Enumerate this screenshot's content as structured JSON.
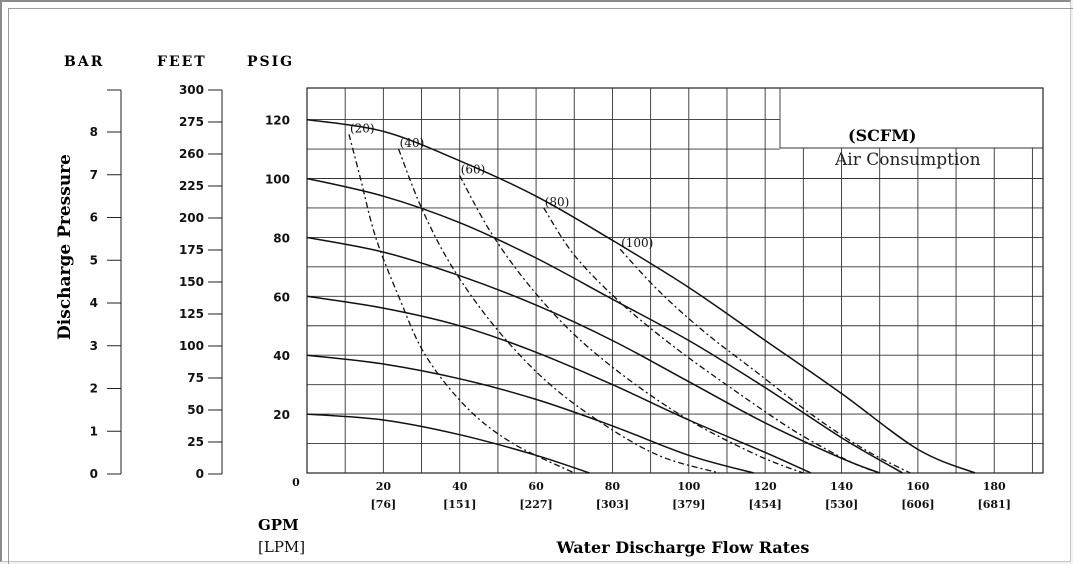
{
  "chart_data": {
    "type": "line",
    "xlabel": "Water Discharge Flow Rates",
    "x_unit_primary": "GPM",
    "x_unit_secondary": "[LPM]",
    "ylabel": "Discharge Pressure",
    "legend_title": "(SCFM)",
    "legend_subtitle": "Air Consumption",
    "xlim": [
      0,
      190
    ],
    "ylim": [
      0,
      130
    ],
    "x_ticks": [
      {
        "gpm": "0",
        "lpm": ""
      },
      {
        "gpm": "20",
        "lpm": "[76]"
      },
      {
        "gpm": "40",
        "lpm": "[151]"
      },
      {
        "gpm": "60",
        "lpm": "[227]"
      },
      {
        "gpm": "80",
        "lpm": "[303]"
      },
      {
        "gpm": "100",
        "lpm": "[379]"
      },
      {
        "gpm": "120",
        "lpm": "[454]"
      },
      {
        "gpm": "140",
        "lpm": "[530]"
      },
      {
        "gpm": "160",
        "lpm": "[606]"
      },
      {
        "gpm": "180",
        "lpm": "[681]"
      }
    ],
    "axes": {
      "bar": {
        "label": "BAR",
        "ticks": [
          "8",
          "7",
          "6",
          "5",
          "4",
          "3",
          "2",
          "1",
          "0"
        ]
      },
      "feet": {
        "label": "FEET",
        "ticks": [
          "300",
          "275",
          "260",
          "225",
          "200",
          "175",
          "150",
          "125",
          "100",
          "75",
          "50",
          "25",
          "0"
        ]
      },
      "psig": {
        "label": "PSIG",
        "ticks": [
          "120",
          "100",
          "80",
          "60",
          "40",
          "20"
        ]
      }
    },
    "series": [
      {
        "kind": "performance",
        "style": "solid",
        "x": [
          0,
          20,
          40,
          60,
          80,
          100,
          120,
          140,
          160,
          175
        ],
        "y": [
          120,
          116,
          106,
          94,
          79,
          63,
          45,
          27,
          8,
          0
        ]
      },
      {
        "kind": "performance",
        "style": "solid",
        "x": [
          0,
          20,
          40,
          60,
          80,
          100,
          120,
          140,
          156
        ],
        "y": [
          100,
          94,
          85,
          73,
          59,
          45,
          29,
          12,
          0
        ]
      },
      {
        "kind": "performance",
        "style": "solid",
        "x": [
          0,
          20,
          40,
          60,
          80,
          100,
          120,
          140,
          150
        ],
        "y": [
          80,
          75,
          67,
          57,
          45,
          31,
          17,
          5,
          0
        ]
      },
      {
        "kind": "performance",
        "style": "solid",
        "x": [
          0,
          20,
          40,
          60,
          80,
          100,
          120,
          132
        ],
        "y": [
          60,
          56,
          50,
          41,
          30,
          18,
          7,
          0
        ]
      },
      {
        "kind": "performance",
        "style": "solid",
        "x": [
          0,
          20,
          40,
          60,
          80,
          100,
          117
        ],
        "y": [
          40,
          37,
          32,
          25,
          16,
          6,
          0
        ]
      },
      {
        "kind": "performance",
        "style": "solid",
        "x": [
          0,
          20,
          40,
          60,
          74
        ],
        "y": [
          20,
          18,
          13,
          6,
          0
        ]
      },
      {
        "name": "(20)",
        "kind": "air",
        "style": "dashed",
        "x": [
          11,
          14,
          18,
          24,
          31,
          42,
          54,
          70
        ],
        "y": [
          115,
          100,
          80,
          60,
          40,
          22,
          10,
          0
        ]
      },
      {
        "name": "(40)",
        "kind": "air",
        "style": "dashed",
        "x": [
          24,
          30,
          38,
          49,
          62,
          76,
          92,
          108
        ],
        "y": [
          110,
          90,
          70,
          50,
          32,
          18,
          6,
          0
        ]
      },
      {
        "name": "(60)",
        "kind": "air",
        "style": "dashed",
        "x": [
          40,
          48,
          58,
          70,
          84,
          100,
          118,
          130
        ],
        "y": [
          101,
          82,
          64,
          47,
          32,
          18,
          6,
          0
        ]
      },
      {
        "name": "(80)",
        "kind": "air",
        "style": "dashed",
        "x": [
          62,
          70,
          82,
          96,
          112,
          128,
          142,
          150
        ],
        "y": [
          90,
          74,
          58,
          43,
          28,
          14,
          4,
          0
        ]
      },
      {
        "name": "(100)",
        "kind": "air",
        "style": "dashed",
        "x": [
          82,
          92,
          104,
          118,
          132,
          146,
          158
        ],
        "y": [
          76,
          62,
          48,
          34,
          20,
          8,
          0
        ]
      }
    ]
  }
}
